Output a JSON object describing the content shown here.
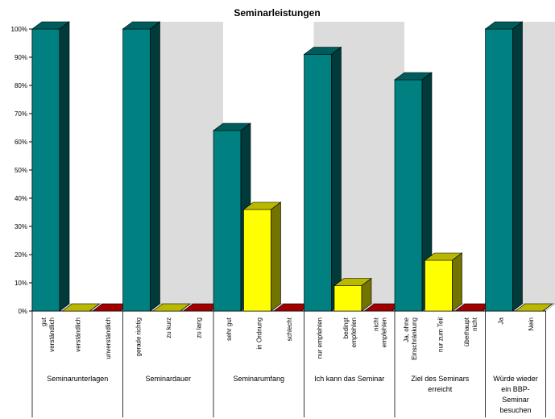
{
  "chart_data": {
    "type": "bar",
    "title": "Seminarleistungen",
    "ylim": [
      0,
      100
    ],
    "yticks": [
      "0%",
      "10%",
      "20%",
      "30%",
      "40%",
      "50%",
      "60%",
      "70%",
      "80%",
      "90%",
      "100%"
    ],
    "grid": false,
    "legend": "none",
    "style": "3d",
    "colors": {
      "level1": "#008080",
      "level2": "#ffff00",
      "level3": "#e00000",
      "wall_shade": "#c0c0c0"
    },
    "groups": [
      {
        "label": [
          "Seminarunterlagen"
        ],
        "bars": [
          {
            "label": [
              "gut",
              "verständlich"
            ],
            "value": 100,
            "level": 1
          },
          {
            "label": [
              "verständlich"
            ],
            "value": 0,
            "level": 2
          },
          {
            "label": [
              "unverständlich"
            ],
            "value": 0,
            "level": 3
          }
        ]
      },
      {
        "label": [
          "Seminardauer"
        ],
        "bars": [
          {
            "label": [
              "gerade richtig"
            ],
            "value": 100,
            "level": 1
          },
          {
            "label": [
              "zu kurz"
            ],
            "value": 0,
            "level": 2
          },
          {
            "label": [
              "zu lang"
            ],
            "value": 0,
            "level": 3
          }
        ]
      },
      {
        "label": [
          "Seminarumfang"
        ],
        "bars": [
          {
            "label": [
              "sehr gut"
            ],
            "value": 64,
            "level": 1
          },
          {
            "label": [
              "in Ordnung"
            ],
            "value": 36,
            "level": 2
          },
          {
            "label": [
              "schlecht"
            ],
            "value": 0,
            "level": 3
          }
        ]
      },
      {
        "label": [
          "Ich kann das Seminar"
        ],
        "bars": [
          {
            "label": [
              "nur empfehlen"
            ],
            "value": 91,
            "level": 1
          },
          {
            "label": [
              "bedingt",
              "empfehlen"
            ],
            "value": 9,
            "level": 2
          },
          {
            "label": [
              "nicht",
              "empfehlen"
            ],
            "value": 0,
            "level": 3
          }
        ]
      },
      {
        "label": [
          "Ziel des Seminars",
          "erreicht"
        ],
        "bars": [
          {
            "label": [
              "Ja, ohne",
              "Einschränkung"
            ],
            "value": 82,
            "level": 1
          },
          {
            "label": [
              "nur zum Teil"
            ],
            "value": 18,
            "level": 2
          },
          {
            "label": [
              "überhaupt",
              "nicht"
            ],
            "value": 0,
            "level": 3
          }
        ]
      },
      {
        "label": [
          "Würde wieder",
          "ein BBP-",
          "Seminar",
          "besuchen"
        ],
        "bars": [
          {
            "label": [
              "Ja"
            ],
            "value": 100,
            "level": 1
          },
          {
            "label": [
              "Nein"
            ],
            "value": 0,
            "level": 2
          }
        ]
      }
    ]
  }
}
